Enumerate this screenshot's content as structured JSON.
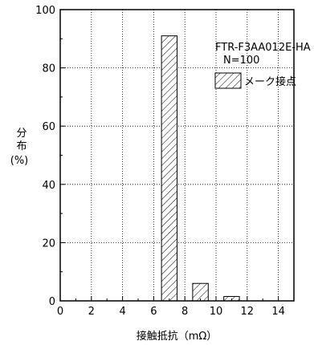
{
  "chart_data": {
    "type": "bar",
    "title": "",
    "annotation": {
      "model": "FTR-F3AA012E-HA",
      "n": "N=100"
    },
    "legend": {
      "position": "top-right",
      "items": [
        {
          "name": "メーク接点",
          "pattern": "diagonal-hatch"
        }
      ]
    },
    "xlabel": "接触抵抗（mΩ）",
    "ylabel": [
      "分",
      "布",
      "(%)"
    ],
    "xlim": [
      0,
      15
    ],
    "ylim": [
      0,
      100
    ],
    "xticks": [
      0,
      2,
      4,
      6,
      8,
      10,
      12,
      14
    ],
    "yticks": [
      0,
      20,
      40,
      60,
      80,
      100
    ],
    "grid": true,
    "series": [
      {
        "name": "メーク接点",
        "bars": [
          {
            "x_start": 6.5,
            "x_end": 7.5,
            "value": 91
          },
          {
            "x_start": 8.5,
            "x_end": 9.5,
            "value": 6
          },
          {
            "x_start": 10.5,
            "x_end": 11.5,
            "value": 1.5
          }
        ]
      }
    ]
  }
}
